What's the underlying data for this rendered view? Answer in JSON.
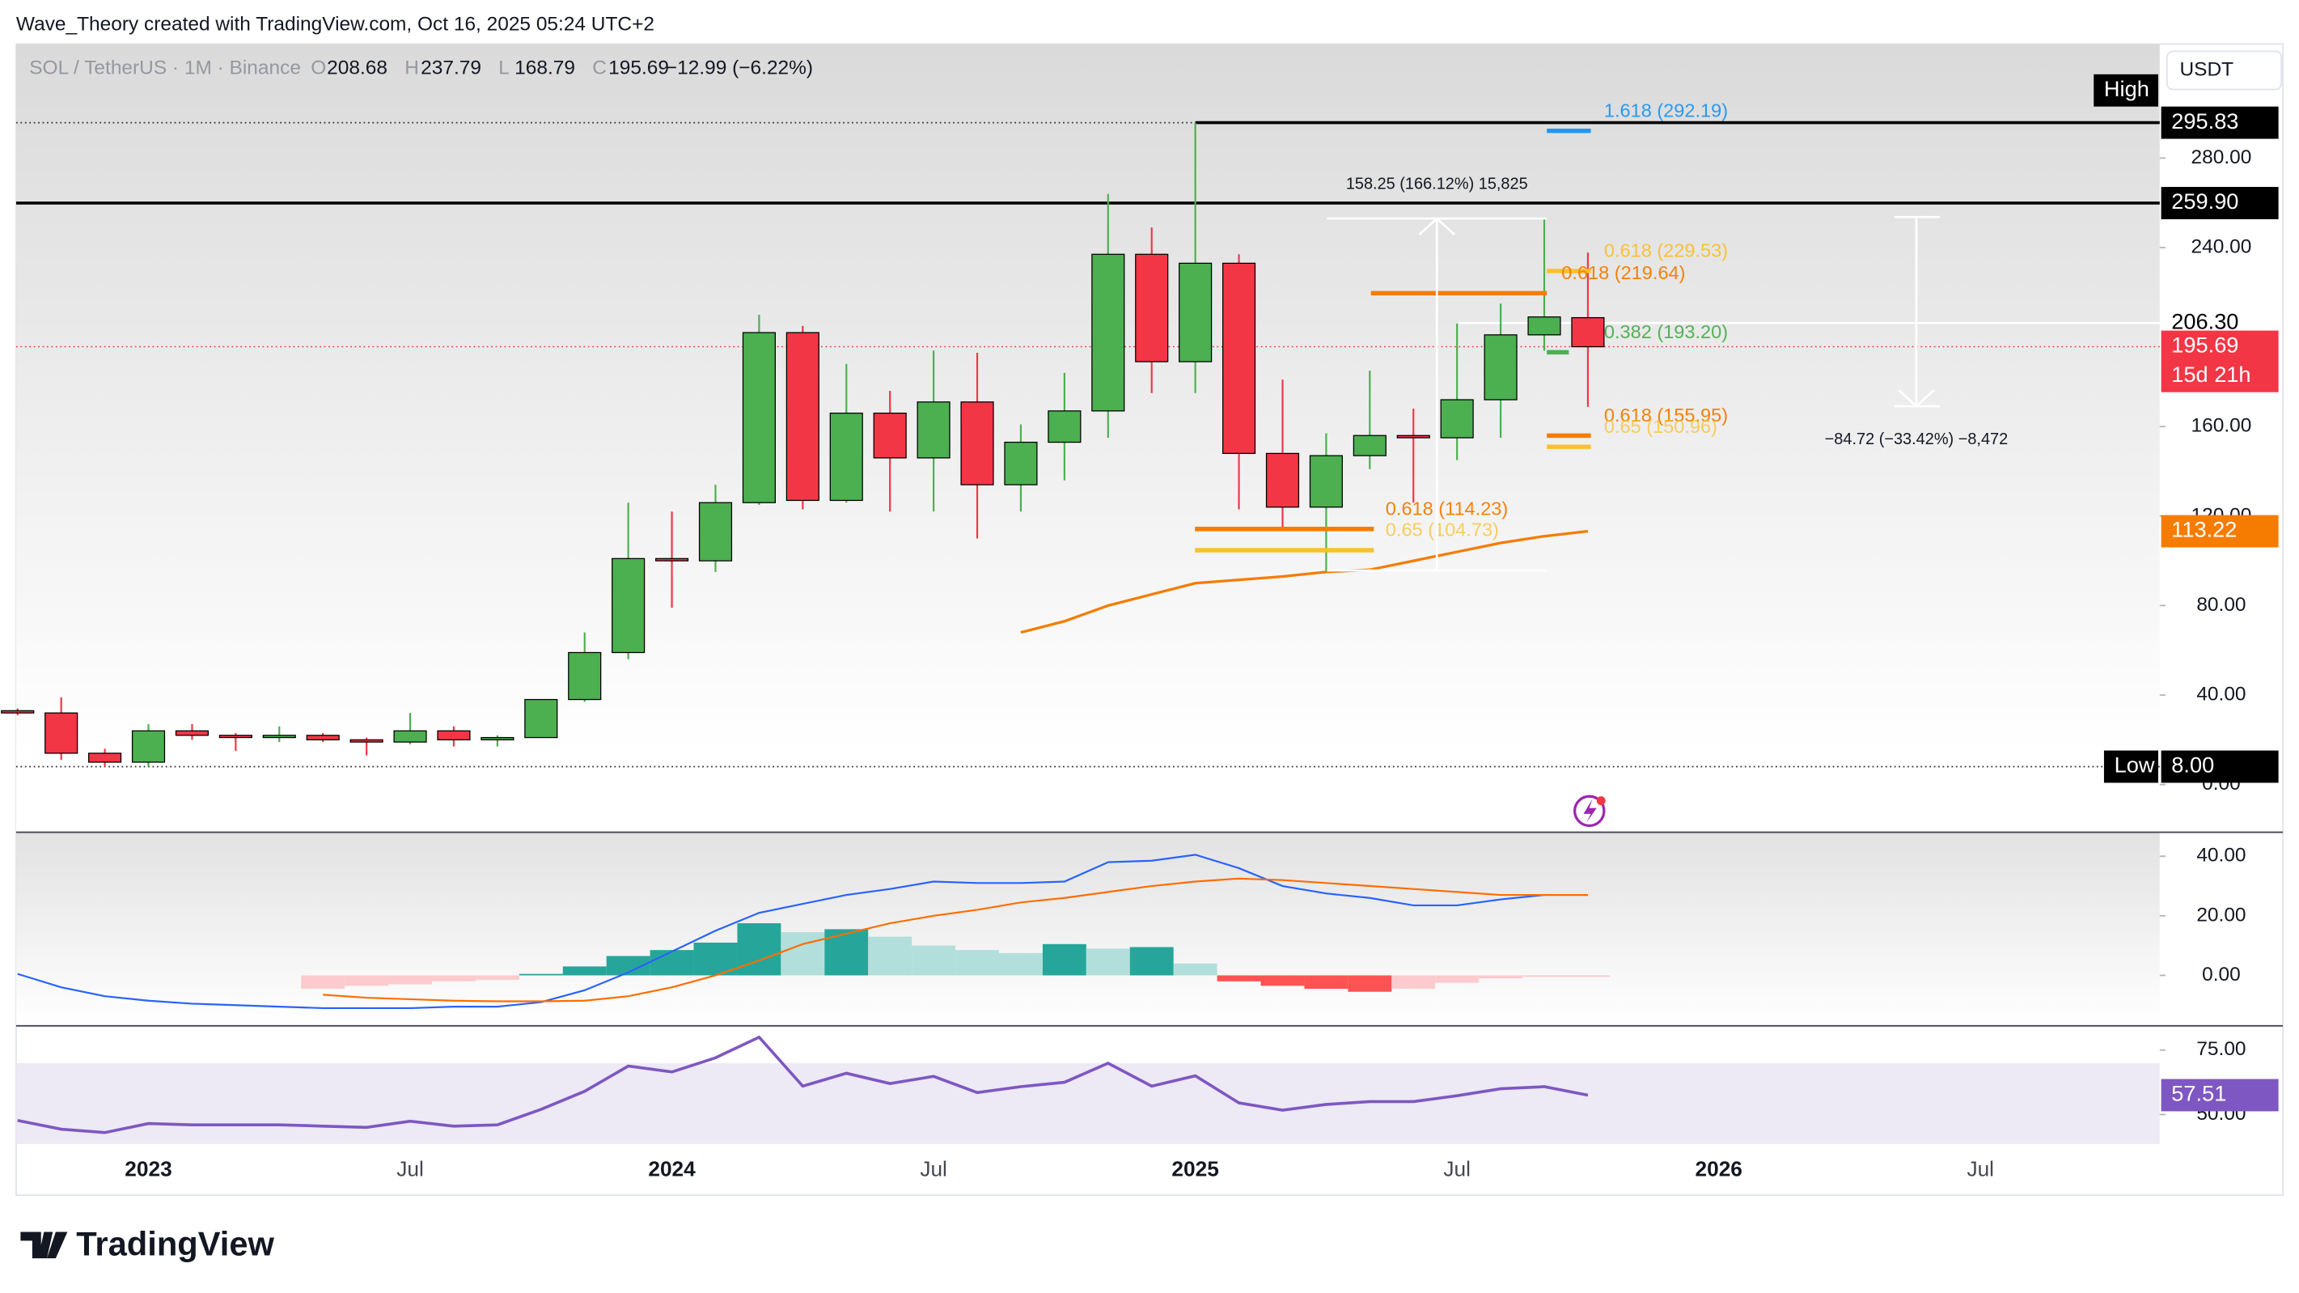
{
  "header": "Wave_Theory created with TradingView.com, Oct 16, 2025 05:24 UTC+2",
  "footer_logo": "TradingView",
  "chart_data": {
    "type": "candlestick",
    "symbol": "SOL / TetherUS · 1M · Binance",
    "currency": "USDT",
    "legend_keys": [
      "O",
      "H",
      "L",
      "C"
    ],
    "change": "−12.99 (−6.22%)",
    "categories": [
      null,
      null,
      null,
      "2023",
      null,
      null,
      null,
      null,
      null,
      "Jul",
      null,
      null,
      null,
      null,
      null,
      "2024",
      null,
      null,
      null,
      null,
      null,
      "Jul",
      null,
      null,
      null,
      null,
      null,
      "2025",
      null,
      null,
      null,
      null,
      null,
      "Jul",
      null,
      null,
      null,
      null,
      null,
      "2026",
      null,
      null,
      null,
      null,
      null,
      "Jul"
    ],
    "ohlc": [
      [
        33,
        34,
        31,
        32
      ],
      [
        32,
        39,
        11,
        14
      ],
      [
        14,
        16,
        8,
        10
      ],
      [
        10,
        27,
        8,
        24
      ],
      [
        24,
        27,
        20,
        22
      ],
      [
        22,
        23,
        15,
        21
      ],
      [
        21,
        26,
        19,
        22
      ],
      [
        22,
        23,
        19,
        20
      ],
      [
        20,
        21,
        13,
        19
      ],
      [
        19,
        32,
        18,
        24
      ],
      [
        24,
        26,
        17,
        20
      ],
      [
        20,
        22,
        17,
        21
      ],
      [
        21,
        38,
        21,
        38
      ],
      [
        38,
        68,
        37,
        59
      ],
      [
        59,
        126,
        56,
        101
      ],
      [
        101,
        122,
        79,
        100
      ],
      [
        100,
        134,
        95,
        126
      ],
      [
        126,
        210,
        125,
        202
      ],
      [
        202,
        205,
        123,
        127
      ],
      [
        127,
        188,
        126,
        166
      ],
      [
        166,
        176,
        122,
        146
      ],
      [
        146,
        194,
        122,
        171
      ],
      [
        171,
        193,
        110,
        134
      ],
      [
        134,
        161,
        122,
        153
      ],
      [
        153,
        184,
        136,
        167
      ],
      [
        167,
        264,
        155,
        237
      ],
      [
        237,
        249,
        175,
        189
      ],
      [
        189,
        295.83,
        175,
        233
      ],
      [
        233,
        237,
        123,
        148
      ],
      [
        148,
        181,
        115,
        124
      ],
      [
        124,
        157,
        95,
        147
      ],
      [
        147,
        185,
        141,
        156
      ],
      [
        156,
        168,
        126,
        155
      ],
      [
        155,
        206,
        145,
        172
      ],
      [
        172,
        215,
        155,
        201
      ],
      [
        201,
        253,
        194,
        209
      ],
      [
        208.68,
        237.79,
        168.79,
        195.69
      ],
      null,
      null,
      null,
      null,
      null,
      null,
      null,
      null,
      null
    ],
    "up_color": "#4caf50",
    "down_color": "#f23645",
    "ylim": [
      -21,
      331
    ],
    "yticks": [
      {
        "value": 0,
        "label": "0.00"
      },
      {
        "value": 40,
        "label": "40.00"
      },
      {
        "value": 80,
        "label": "80.00"
      },
      {
        "value": 120,
        "label": "120.00"
      },
      {
        "value": 160,
        "label": "160.00"
      },
      {
        "value": 240,
        "label": "240.00"
      },
      {
        "value": 280,
        "label": "280.00"
      }
    ],
    "ema": {
      "color": "#f57c00",
      "values": [
        null,
        null,
        null,
        null,
        null,
        null,
        null,
        null,
        null,
        null,
        null,
        null,
        null,
        null,
        null,
        null,
        null,
        null,
        null,
        null,
        null,
        null,
        null,
        68,
        73,
        80,
        85,
        90,
        91.5,
        93,
        95,
        96,
        100,
        104,
        108,
        111,
        113.22,
        null,
        null,
        null,
        null,
        null,
        null,
        null,
        null,
        null
      ]
    },
    "high_tag": "High",
    "badges": [
      {
        "value": 259.9,
        "label": "259.90"
      },
      {
        "value": 206.3,
        "label": "206.30"
      },
      {
        "value": 8,
        "label": "8.00",
        "tag": "Low"
      }
    ],
    "countdown": "15d 21h",
    "levels": [
      {
        "label": "1.618 (292.19)",
        "value": 292.19,
        "color": "#2196f3"
      },
      {
        "label": "0.618 (229.53)",
        "value": 229.53,
        "color": "#fbc02d"
      },
      {
        "label": "0.618 (219.64)",
        "value": 219.64,
        "color": "#f57c00"
      },
      {
        "label": "0.382 (193.20)",
        "value": 193.2,
        "color": "#4caf50"
      },
      {
        "label": "0.618 (155.95)",
        "value": 155.95,
        "color": "#f57c00"
      },
      {
        "label": "0.65 (150.96)",
        "value": 150.96,
        "color": "#fbc02d"
      },
      {
        "label": "0.618 (114.23)",
        "value": 114.23,
        "color": "#f57c00"
      },
      {
        "label": "0.65 (104.73)",
        "value": 104.73,
        "color": "#fbc02d"
      }
    ],
    "measures": [
      "158.25 (166.12%) 15,825",
      "−84.72 (−33.42%) −8,472"
    ],
    "macd": {
      "ylim": [
        -16.7,
        47.8
      ],
      "yticks": [
        {
          "value": 0,
          "label": "0.00"
        },
        {
          "value": 20,
          "label": "20.00"
        },
        {
          "value": 40,
          "label": "40.00"
        }
      ],
      "macd": {
        "color": "#2962ff",
        "values": [
          0.5,
          -4,
          -7,
          -8.5,
          -9.5,
          -10,
          -10.5,
          -11,
          -11,
          -11,
          -10.5,
          -10.5,
          -9,
          -5,
          1,
          8,
          15,
          21,
          24,
          27,
          29,
          31.5,
          31,
          31,
          31.5,
          38,
          38.5,
          40.5,
          36,
          30,
          27.5,
          26,
          23.5,
          23.5,
          25.5,
          27,
          27,
          null,
          null,
          null,
          null,
          null,
          null,
          null,
          null,
          null
        ]
      },
      "signal": {
        "color": "#ff6d00",
        "values": [
          null,
          null,
          null,
          null,
          null,
          null,
          null,
          -6.5,
          -7.5,
          -8,
          -8.5,
          -8.7,
          -8.7,
          -8.5,
          -7,
          -4,
          0,
          5,
          10.5,
          14,
          17.5,
          20,
          22,
          24.5,
          26,
          28,
          30,
          31.5,
          32.5,
          32,
          31,
          30,
          29,
          28,
          27,
          27,
          27,
          null,
          null,
          null,
          null,
          null,
          null,
          null,
          null,
          null
        ]
      },
      "histogram": {
        "values": [
          null,
          null,
          null,
          null,
          null,
          null,
          null,
          -4.5,
          -3.5,
          -3,
          -2,
          -1.5,
          0.5,
          3,
          6.5,
          8.5,
          11,
          17.5,
          14.5,
          15.5,
          13,
          10,
          8.5,
          7.5,
          10.5,
          9,
          9.5,
          4,
          -2,
          -3.5,
          -4.5,
          -5.5,
          -4.5,
          -2.5,
          -1,
          -0.5,
          -0.5,
          null,
          null,
          null,
          null,
          null,
          null,
          null,
          null,
          null
        ],
        "colors": [
          null,
          null,
          null,
          null,
          null,
          null,
          null,
          "#fccbcd",
          "#fccbcd",
          "#fccbcd",
          "#fccbcd",
          "#fccbcd",
          "#26a69a",
          "#26a69a",
          "#26a69a",
          "#26a69a",
          "#26a69a",
          "#26a69a",
          "#b2dfdb",
          "#26a69a",
          "#b2dfdb",
          "#b2dfdb",
          "#b2dfdb",
          "#b2dfdb",
          "#26a69a",
          "#b2dfdb",
          "#26a69a",
          "#b2dfdb",
          "#ff5252",
          "#ff5252",
          "#ff5252",
          "#ff5252",
          "#fccbcd",
          "#fccbcd",
          "#fccbcd",
          "#fccbcd",
          "#fccbcd",
          null,
          null,
          null,
          null,
          null,
          null,
          null,
          null,
          null
        ]
      }
    },
    "rsi": {
      "ylim": [
        38.6,
        84.1
      ],
      "yticks": [
        {
          "value": 50,
          "label": "50.00"
        },
        {
          "value": 75,
          "label": "75.00"
        }
      ],
      "color": "#7e57c2",
      "values": [
        47.7,
        44.3,
        43,
        46.5,
        46,
        46,
        46,
        45.5,
        45,
        47.4,
        45.5,
        46,
        52,
        59,
        68.8,
        66.5,
        72,
        80,
        61,
        66,
        62,
        64.8,
        58.5,
        60.8,
        62.5,
        69.9,
        61,
        65,
        54.5,
        51.7,
        53.9,
        55,
        55,
        57.3,
        60,
        60.8,
        57.51,
        null,
        null,
        null,
        null,
        null,
        null,
        null,
        null,
        null
      ]
    }
  }
}
